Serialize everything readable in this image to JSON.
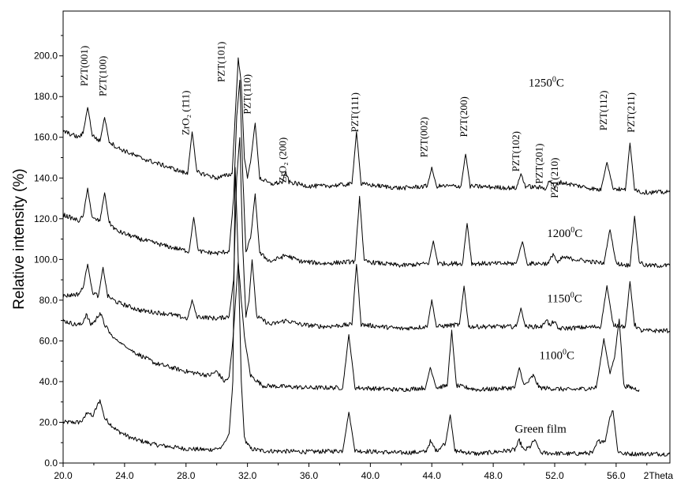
{
  "chart_data": {
    "type": "line",
    "title": "",
    "xlabel": "2Theta",
    "ylabel": "Relative intensity (%)",
    "xlim": [
      20,
      59.5
    ],
    "ylim": [
      0,
      222
    ],
    "grid": false,
    "legend": "none",
    "x_ticks": [
      "20.0",
      "24.0",
      "28.0",
      "32.0",
      "36.0",
      "40.0",
      "44.0",
      "48.0",
      "52.0",
      "56.0"
    ],
    "x_tick_values": [
      20,
      24,
      28,
      32,
      36,
      40,
      44,
      48,
      52,
      56
    ],
    "y_ticks": [
      "0.0",
      "20.0",
      "40.0",
      "60.0",
      "80.0",
      "100.0",
      "120.0",
      "140.0",
      "160.0",
      "180.0",
      "200.0"
    ],
    "y_tick_values": [
      0,
      20,
      40,
      60,
      80,
      100,
      120,
      140,
      160,
      180,
      200
    ],
    "series": [
      {
        "name": "Green film",
        "color": "#000000",
        "x": [
          20.0,
          21.0,
          21.3,
          21.6,
          21.9,
          22.1,
          22.4,
          22.7,
          23.5,
          24.5,
          26.0,
          28.0,
          29.5,
          30.3,
          30.8,
          31.05,
          31.2,
          31.4,
          31.6,
          31.8,
          32.2,
          33.0,
          36.0,
          38.2,
          38.6,
          39.0,
          42.0,
          43.6,
          43.9,
          44.3,
          44.9,
          45.2,
          45.5,
          47.0,
          49.4,
          49.7,
          50.0,
          50.4,
          50.7,
          51.1,
          53.0,
          54.5,
          54.8,
          55.1,
          55.3,
          55.6,
          55.8,
          56.1,
          56.5,
          59.5
        ],
        "y": [
          20.0,
          20.0,
          21.0,
          25.5,
          22.5,
          26.0,
          31.0,
          22.0,
          16.0,
          12.0,
          9.0,
          7.0,
          6.5,
          7.5,
          14.0,
          40.0,
          145.0,
          100.0,
          40.0,
          12.0,
          7.0,
          6.0,
          5.5,
          6.0,
          25.0,
          6.0,
          5.0,
          5.5,
          10.5,
          6.0,
          10.0,
          24.0,
          6.0,
          4.5,
          6.5,
          11.0,
          6.0,
          8.0,
          11.5,
          5.0,
          4.5,
          5.0,
          10.5,
          11.0,
          11.0,
          23.0,
          26.0,
          6.0,
          4.5,
          4.5
        ]
      },
      {
        "name": "1100⁰C",
        "color": "#000000",
        "x": [
          20.0,
          20.8,
          21.2,
          21.5,
          21.8,
          22.1,
          22.4,
          22.7,
          23.2,
          24.5,
          26.0,
          28.0,
          29.5,
          30.0,
          30.5,
          30.8,
          31.05,
          31.2,
          31.4,
          31.6,
          31.8,
          32.2,
          33.0,
          36.0,
          38.2,
          38.6,
          39.0,
          42.0,
          43.6,
          43.9,
          44.3,
          45.0,
          45.3,
          45.6,
          47.0,
          49.4,
          49.7,
          50.0,
          50.3,
          50.6,
          51.0,
          53.0,
          54.7,
          54.9,
          55.2,
          55.6,
          55.9,
          56.2,
          56.5,
          57.5
        ],
        "y": [
          70.0,
          68.0,
          68.0,
          73.0,
          68.0,
          70.0,
          74.0,
          68.0,
          62.0,
          55.0,
          49.0,
          45.0,
          43.0,
          45.0,
          40.0,
          42.0,
          60.0,
          77.0,
          99.0,
          80.0,
          62.0,
          43.0,
          38.0,
          37.0,
          37.0,
          63.0,
          37.0,
          36.0,
          37.0,
          47.0,
          37.0,
          38.0,
          65.0,
          38.0,
          36.0,
          37.0,
          47.0,
          38.0,
          40.0,
          43.0,
          37.0,
          36.0,
          37.0,
          46.0,
          61.0,
          44.0,
          52.0,
          71.0,
          38.0,
          36.0
        ]
      },
      {
        "name": "1150⁰C",
        "color": "#000000",
        "x": [
          20.0,
          21.0,
          21.3,
          21.6,
          21.9,
          22.3,
          22.6,
          22.9,
          23.5,
          25.0,
          27.0,
          28.1,
          28.4,
          28.7,
          30.0,
          30.8,
          31.1,
          31.3,
          31.5,
          31.7,
          31.9,
          32.1,
          32.3,
          32.6,
          33.5,
          34.5,
          35.5,
          37.0,
          38.8,
          39.1,
          39.4,
          42.0,
          43.7,
          44.0,
          44.3,
          45.8,
          46.1,
          46.4,
          49.5,
          49.8,
          50.1,
          51.2,
          51.45,
          51.7,
          51.95,
          52.2,
          55.0,
          55.4,
          55.8,
          56.6,
          56.9,
          57.2,
          57.6,
          59.5
        ],
        "y": [
          82.0,
          83.0,
          86.0,
          98.0,
          84.0,
          82.0,
          96.0,
          82.0,
          79.0,
          75.0,
          73.0,
          71.0,
          80.0,
          72.0,
          71.0,
          72.0,
          90.0,
          140.0,
          160.0,
          105.0,
          72.0,
          80.0,
          100.0,
          72.0,
          68.0,
          70.0,
          68.0,
          67.0,
          68.0,
          98.0,
          68.0,
          66.0,
          67.0,
          80.0,
          67.0,
          68.0,
          87.0,
          67.0,
          67.0,
          76.0,
          67.0,
          67.0,
          71.0,
          67.0,
          70.0,
          66.0,
          67.0,
          87.0,
          68.0,
          67.0,
          89.0,
          68.0,
          65.0,
          65.0
        ]
      },
      {
        "name": "1200⁰C",
        "color": "#000000",
        "x": [
          20.0,
          21.0,
          21.3,
          21.6,
          21.9,
          22.4,
          22.7,
          23.0,
          23.5,
          25.0,
          27.0,
          28.2,
          28.5,
          28.8,
          30.0,
          30.8,
          31.1,
          31.3,
          31.5,
          31.7,
          31.9,
          32.2,
          32.5,
          32.8,
          33.5,
          34.5,
          35.5,
          37.0,
          39.0,
          39.3,
          39.6,
          42.0,
          43.8,
          44.1,
          44.4,
          46.0,
          46.3,
          46.6,
          49.5,
          49.9,
          50.2,
          51.6,
          51.9,
          52.2,
          52.5,
          55.2,
          55.6,
          56.0,
          56.9,
          57.2,
          57.5,
          57.9,
          59.5
        ],
        "y": [
          122.0,
          119.0,
          121.0,
          135.0,
          120.0,
          119.0,
          133.0,
          118.0,
          114.0,
          110.0,
          106.0,
          104.0,
          121.0,
          104.0,
          103.0,
          104.0,
          130.0,
          170.0,
          188.0,
          140.0,
          104.0,
          110.0,
          132.0,
          103.0,
          99.0,
          102.0,
          99.0,
          98.0,
          99.0,
          131.0,
          99.0,
          97.0,
          98.0,
          109.0,
          98.0,
          98.0,
          118.0,
          98.0,
          98.0,
          109.0,
          98.0,
          98.0,
          103.0,
          98.0,
          101.0,
          98.0,
          115.0,
          98.0,
          97.0,
          121.0,
          99.0,
          97.0,
          97.0
        ]
      },
      {
        "name": "1250⁰C",
        "color": "#000000",
        "x": [
          20.0,
          21.0,
          21.3,
          21.6,
          21.9,
          22.4,
          22.7,
          23.0,
          23.5,
          25.0,
          27.0,
          28.1,
          28.4,
          28.7,
          30.0,
          31.0,
          31.2,
          31.4,
          31.6,
          31.8,
          32.0,
          32.2,
          32.5,
          32.8,
          33.5,
          34.3,
          34.5,
          34.7,
          36.0,
          37.0,
          38.8,
          39.1,
          39.4,
          42.0,
          43.7,
          44.0,
          44.3,
          45.9,
          46.2,
          46.5,
          49.5,
          49.8,
          50.1,
          51.4,
          51.7,
          52.0,
          52.3,
          55.0,
          55.4,
          55.8,
          56.6,
          56.9,
          57.2,
          57.6,
          59.5
        ],
        "y": [
          163.0,
          160.0,
          162.0,
          175.0,
          161.0,
          158.0,
          170.0,
          158.0,
          155.0,
          150.0,
          145.0,
          142.0,
          163.0,
          143.0,
          140.0,
          142.0,
          170.0,
          199.0,
          186.0,
          150.0,
          140.0,
          148.0,
          167.0,
          140.0,
          137.0,
          138.0,
          143.0,
          138.0,
          136.0,
          136.0,
          137.0,
          163.0,
          137.0,
          135.0,
          136.0,
          145.0,
          136.0,
          136.0,
          152.0,
          136.0,
          135.0,
          142.0,
          136.0,
          135.0,
          139.0,
          135.0,
          138.0,
          134.0,
          148.0,
          135.0,
          134.0,
          157.0,
          135.0,
          133.0,
          133.0
        ]
      }
    ],
    "curve_labels": [
      {
        "text": "1250",
        "sup": "0",
        "unit": "C",
        "at": [
          50.3,
          185
        ]
      },
      {
        "text": "1200",
        "sup": "0",
        "unit": "C",
        "at": [
          51.5,
          111
        ]
      },
      {
        "text": "1150",
        "sup": "0",
        "unit": "C",
        "at": [
          51.5,
          79
        ]
      },
      {
        "text": "1100",
        "sup": "0",
        "unit": "C",
        "at": [
          51.0,
          51
        ]
      },
      {
        "text": "Green film",
        "sup": "",
        "unit": "",
        "at": [
          49.4,
          15
        ]
      }
    ],
    "peak_labels": [
      {
        "text": "PZT(001)",
        "x": 21.6,
        "y_top": 205
      },
      {
        "text": "PZT(100)",
        "x": 22.8,
        "y_top": 200
      },
      {
        "text": "ZrO₂ (1̄11)",
        "x": 28.2,
        "y_top": 183
      },
      {
        "text": "PZT(101)",
        "x": 30.5,
        "y_top": 207
      },
      {
        "text": "PZT(110)",
        "x": 32.2,
        "y_top": 191
      },
      {
        "text": "ZrO₂ (200)",
        "x": 34.5,
        "y_top": 160
      },
      {
        "text": "PZT(111)",
        "x": 39.2,
        "y_top": 182
      },
      {
        "text": "PZT(002)",
        "x": 43.7,
        "y_top": 170
      },
      {
        "text": "PZT(200)",
        "x": 46.3,
        "y_top": 180
      },
      {
        "text": "PZT(102)",
        "x": 49.7,
        "y_top": 163
      },
      {
        "text": "PZT(201)",
        "x": 51.2,
        "y_top": 157
      },
      {
        "text": "PZT(210)",
        "x": 52.2,
        "y_top": 150
      },
      {
        "text": "PZT(112)",
        "x": 55.4,
        "y_top": 183
      },
      {
        "text": "PZT(211)",
        "x": 57.2,
        "y_top": 182
      }
    ]
  }
}
